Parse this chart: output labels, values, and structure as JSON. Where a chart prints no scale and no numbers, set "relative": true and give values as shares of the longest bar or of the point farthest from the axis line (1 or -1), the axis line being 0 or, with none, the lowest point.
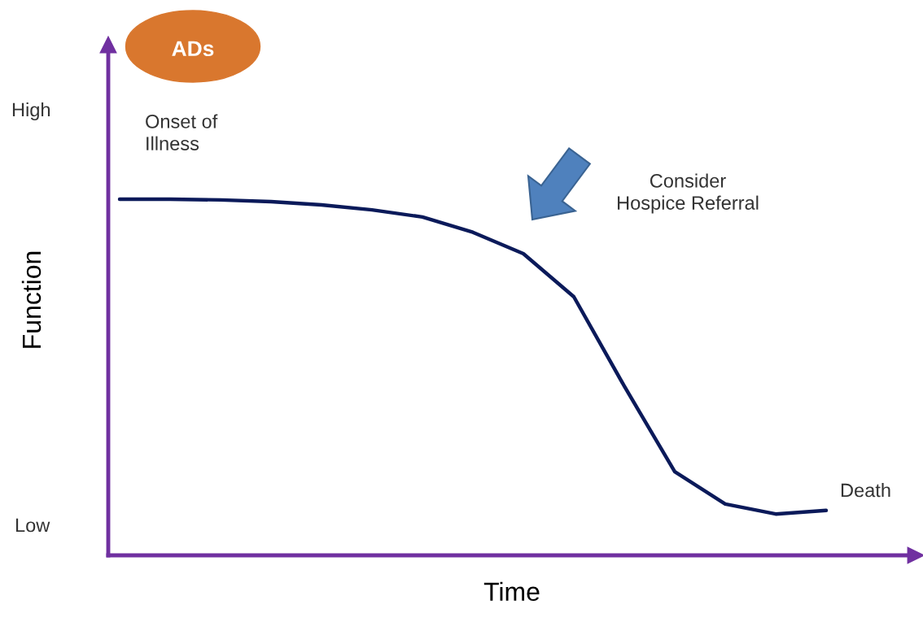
{
  "chart_data": {
    "type": "line",
    "relative": true,
    "xlabel": "Time",
    "ylabel": "Function",
    "categories": [
      null,
      null,
      null,
      null,
      null,
      null,
      null,
      null,
      null,
      null,
      null,
      null,
      null,
      null,
      null
    ],
    "series": [
      {
        "color": "#0b1a5a",
        "values": [
          1.0,
          1.0,
          0.998,
          0.993,
          0.984,
          0.97,
          0.95,
          0.907,
          0.847,
          0.726,
          0.475,
          0.235,
          0.144,
          0.116,
          0.126
        ]
      }
    ],
    "annotations": [
      "ADs",
      "Onset of\nIllness",
      "Consider\nHospice Referral",
      "Death",
      "High",
      "Low"
    ]
  }
}
